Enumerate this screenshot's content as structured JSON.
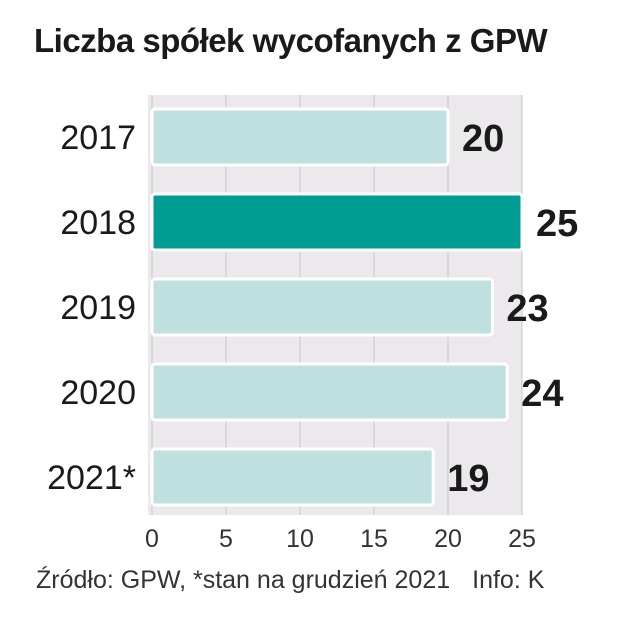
{
  "chart_data": {
    "type": "bar",
    "orientation": "horizontal",
    "title": "Liczba spółek wycofanych z GPW",
    "categories": [
      "2017",
      "2018",
      "2019",
      "2020",
      "2021*"
    ],
    "values": [
      20,
      25,
      23,
      24,
      19
    ],
    "highlight_index": 1,
    "xlim": [
      0,
      25
    ],
    "xticks": [
      0,
      5,
      10,
      15,
      20,
      25
    ],
    "xlabel": "",
    "ylabel": "",
    "grid": true
  },
  "colors": {
    "bar_fill": "#bfe0de",
    "bar_highlight": "#009e92",
    "plot_background": "#ece9ed",
    "gridline": "#c9c6cb",
    "bar_stroke": "#ffffff"
  },
  "footer": {
    "source": "Źródło: GPW, *stan na grudzień 2021",
    "credit": "Info: K"
  }
}
